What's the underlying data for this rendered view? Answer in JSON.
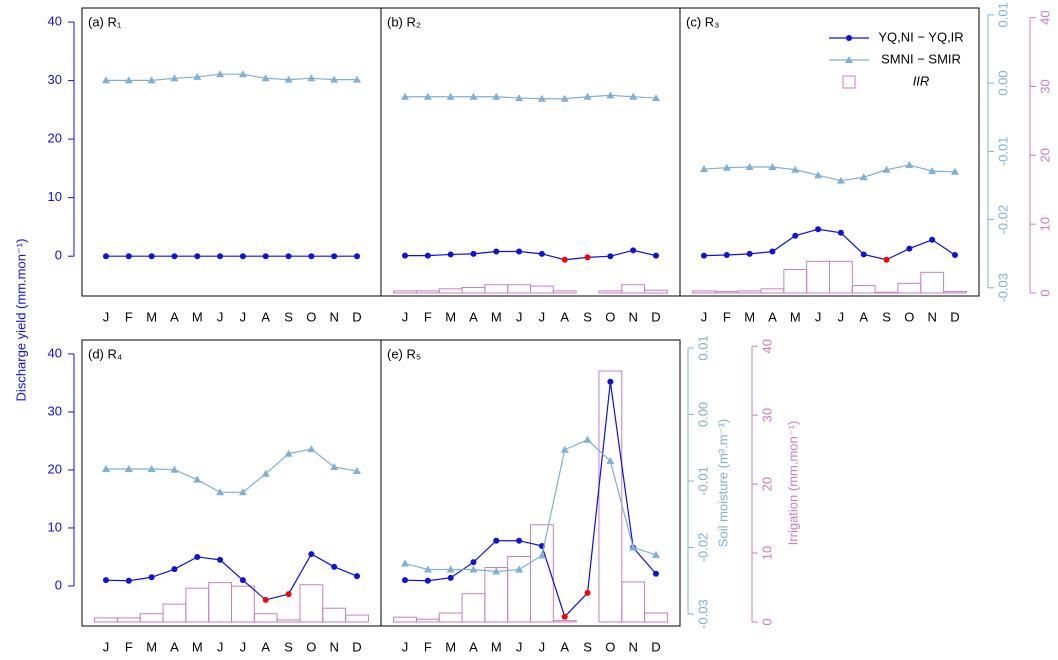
{
  "chart_data": [
    {
      "type": "line",
      "title": "(a) R₁",
      "categories": [
        "J",
        "F",
        "M",
        "A",
        "M",
        "J",
        "J",
        "A",
        "S",
        "O",
        "N",
        "D"
      ],
      "series": [
        {
          "color": "#1010e0",
          "negative_color": "#ff0000",
          "marker": "circle",
          "values": [
            0,
            0,
            0,
            0,
            0,
            0,
            0,
            0,
            0,
            0,
            0,
            0
          ]
        },
        {
          "color": "#7fb0d6",
          "marker": "triangle",
          "axis": "y2",
          "values": [
            0.0004,
            0.0004,
            0.0004,
            0.0007,
            0.0009,
            0.0013,
            0.0013,
            0.0007,
            0.0005,
            0.0007,
            0.0005,
            0.0005
          ]
        },
        {
          "color": "#c77fc4",
          "marker": "bar",
          "axis": "y3",
          "values": [
            0,
            0,
            0,
            0,
            0,
            0,
            0,
            0,
            0,
            0,
            0,
            0
          ]
        }
      ],
      "ylim": [
        -6.8,
        42.4
      ],
      "y2lim": [
        -0.0312,
        0.011
      ],
      "y3lim": [
        -0.44,
        41.4
      ],
      "yticks": [
        0,
        10,
        20,
        30,
        40
      ]
    },
    {
      "type": "line",
      "title": "(b) R₂",
      "categories": [
        "J",
        "F",
        "M",
        "A",
        "M",
        "J",
        "J",
        "A",
        "S",
        "O",
        "N",
        "D"
      ],
      "series": [
        {
          "color": "#1010e0",
          "negative_color": "#ff0000",
          "marker": "circle",
          "values": [
            0.1,
            0.1,
            0.3,
            0.4,
            0.8,
            0.8,
            0.4,
            -0.6,
            -0.2,
            0.0,
            1.0,
            0.1
          ]
        },
        {
          "color": "#7fb0d6",
          "marker": "triangle",
          "axis": "y2",
          "values": [
            -0.002,
            -0.002,
            -0.002,
            -0.002,
            -0.002,
            -0.0022,
            -0.0023,
            -0.0023,
            -0.002,
            -0.0018,
            -0.002,
            -0.0022
          ]
        },
        {
          "color": "#c77fc4",
          "marker": "bar",
          "axis": "y3",
          "values": [
            0.3,
            0.3,
            0.6,
            0.8,
            1.2,
            1.2,
            1.0,
            0.3,
            0,
            0.3,
            1.2,
            0.4
          ]
        }
      ],
      "ylim": [
        -6.8,
        42.4
      ],
      "y2lim": [
        -0.0312,
        0.011
      ],
      "y3lim": [
        -0.44,
        41.4
      ]
    },
    {
      "type": "line",
      "title": "(c) R₃",
      "categories": [
        "J",
        "F",
        "M",
        "A",
        "M",
        "J",
        "J",
        "A",
        "S",
        "O",
        "N",
        "D"
      ],
      "series": [
        {
          "name": "YQ,NI − YQ,IR",
          "color": "#1010e0",
          "negative_color": "#ff0000",
          "marker": "circle",
          "values": [
            0.1,
            0.2,
            0.4,
            0.8,
            3.5,
            4.6,
            4.0,
            0.3,
            -0.6,
            1.3,
            2.8,
            0.2
          ]
        },
        {
          "name": "SMNI − SMIR",
          "color": "#7fb0d6",
          "marker": "triangle",
          "axis": "y2",
          "values": [
            -0.0126,
            -0.0124,
            -0.0123,
            -0.0123,
            -0.0127,
            -0.0135,
            -0.0143,
            -0.0138,
            -0.0127,
            -0.012,
            -0.0129,
            -0.013
          ]
        },
        {
          "name": "IIR",
          "color": "#c77fc4",
          "marker": "bar",
          "axis": "y3",
          "values": [
            0.3,
            0.2,
            0.3,
            0.6,
            3.4,
            4.6,
            4.6,
            1.1,
            0.1,
            1.4,
            3.0,
            0.2
          ]
        }
      ],
      "ylim": [
        -6.8,
        42.4
      ],
      "y2lim": [
        -0.0312,
        0.011
      ],
      "y3lim": [
        -0.44,
        41.4
      ],
      "y2ticks": [
        -0.03,
        -0.02,
        -0.01,
        {
          "value": 0,
          "label": "0.00"
        },
        0.01
      ],
      "y3ticks": [
        0,
        10,
        20,
        30,
        40
      ],
      "legend": "top-right"
    },
    {
      "type": "line",
      "title": "(d) R₄",
      "ylabel": "Discharge yield (mm.mon⁻¹)",
      "categories": [
        "J",
        "F",
        "M",
        "A",
        "M",
        "J",
        "J",
        "A",
        "S",
        "O",
        "N",
        "D"
      ],
      "series": [
        {
          "color": "#1010e0",
          "negative_color": "#ff0000",
          "marker": "circle",
          "values": [
            1.0,
            0.9,
            1.5,
            2.9,
            5.0,
            4.5,
            1.0,
            -2.4,
            -1.4,
            5.5,
            3.3,
            1.7
          ]
        },
        {
          "color": "#7fb0d6",
          "marker": "triangle",
          "axis": "y2",
          "values": [
            -0.0082,
            -0.0082,
            -0.0082,
            -0.0083,
            -0.0098,
            -0.0117,
            -0.0117,
            -0.0089,
            -0.0059,
            -0.0052,
            -0.0079,
            -0.0085
          ]
        },
        {
          "color": "#c77fc4",
          "marker": "bar",
          "axis": "y3",
          "values": [
            0.6,
            0.6,
            1.2,
            2.6,
            4.9,
            5.7,
            5.2,
            1.2,
            0.3,
            5.4,
            2.0,
            1.0
          ]
        }
      ],
      "ylim": [
        -6.9,
        42.4
      ],
      "y2lim": [
        -0.0318,
        0.0112
      ],
      "y3lim": [
        -0.58,
        40.9
      ],
      "yticks": [
        0,
        10,
        20,
        30,
        40
      ]
    },
    {
      "type": "line",
      "title": "(e) R₅",
      "y2label": "Soil moisture (m³.m⁻³)",
      "y3label": "Irrigation (mm.mon⁻¹)",
      "categories": [
        "J",
        "F",
        "M",
        "A",
        "M",
        "J",
        "J",
        "A",
        "S",
        "O",
        "N",
        "D"
      ],
      "series": [
        {
          "color": "#1010e0",
          "negative_color": "#ff0000",
          "marker": "circle",
          "values": [
            1.0,
            0.9,
            1.4,
            4.1,
            7.8,
            7.8,
            6.9,
            -5.3,
            -1.2,
            35.2,
            6.6,
            2.1
          ]
        },
        {
          "color": "#7fb0d6",
          "marker": "triangle",
          "axis": "y2",
          "values": [
            -0.0224,
            -0.0233,
            -0.0233,
            -0.0233,
            -0.0236,
            -0.0233,
            -0.0212,
            -0.0053,
            -0.0038,
            -0.007,
            -0.02,
            -0.0211
          ]
        },
        {
          "color": "#c77fc4",
          "marker": "bar",
          "axis": "y3",
          "values": [
            0.7,
            0.4,
            1.3,
            4.1,
            7.9,
            9.5,
            14.1,
            0.2,
            0,
            36.4,
            5.8,
            1.3
          ]
        }
      ],
      "ylim": [
        -6.9,
        42.4
      ],
      "y2lim": [
        -0.0318,
        0.0112
      ],
      "y3lim": [
        -0.58,
        40.9
      ],
      "y2ticks": [
        -0.03,
        -0.02,
        -0.01,
        {
          "value": 0,
          "label": "0.00"
        },
        0.01
      ],
      "y3ticks": [
        0,
        10,
        20,
        30,
        40
      ]
    }
  ]
}
